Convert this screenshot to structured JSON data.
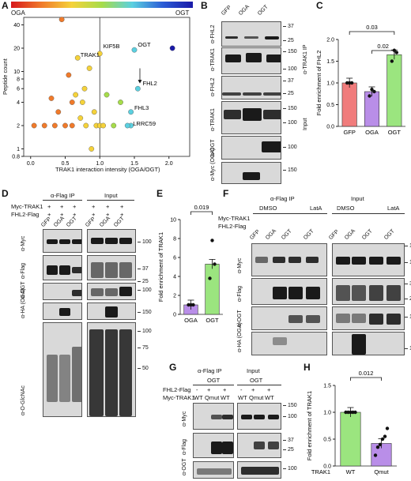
{
  "panels": {
    "A": "A",
    "B": "B",
    "C": "C",
    "D": "D",
    "E": "E",
    "F": "F",
    "G": "G",
    "H": "H"
  },
  "colorbar": {
    "left": "OGA",
    "right": "OGT"
  },
  "scatter": {
    "xlabel": "TRAK1 interaction intensity (OGA/OGT)",
    "ylabel": "Peptide count",
    "xticks": [
      "0.0",
      "0.5",
      "1.0",
      "1.5",
      "2.0"
    ],
    "yticks": [
      "0.8",
      "1",
      "2",
      "4",
      "6",
      "8",
      "10",
      "20",
      "40"
    ],
    "labels": [
      "KIF5B",
      "OGT",
      "TRAK1",
      "FHL2",
      "FHL3",
      "LRRC59"
    ]
  },
  "panelB": {
    "lanes": [
      "GFP",
      "OGA",
      "OGT"
    ],
    "rows": [
      "α-FHL2",
      "α-TRAK1",
      "α-FHL2",
      "α-TRAK1",
      "α-OGT",
      "α-Myc (OGA)"
    ],
    "groups": [
      "α-TRAK1 IP",
      "Input"
    ],
    "mw": [
      "37",
      "25",
      "150",
      "100",
      "37",
      "25",
      "150",
      "100",
      "100",
      "150"
    ]
  },
  "chart_data": [
    {
      "type": "scatter",
      "xlabel": "TRAK1 interaction intensity (OGA/OGT)",
      "ylabel": "Peptide count",
      "yscale": "log",
      "xlim": [
        -0.1,
        2.3
      ],
      "ylim": [
        0.8,
        50
      ],
      "points": [
        {
          "x": 0.05,
          "y": 2
        },
        {
          "x": 0.2,
          "y": 2
        },
        {
          "x": 0.3,
          "y": 4.5
        },
        {
          "x": 0.35,
          "y": 2
        },
        {
          "x": 0.4,
          "y": 3
        },
        {
          "x": 0.45,
          "y": 47
        },
        {
          "x": 0.5,
          "y": 2
        },
        {
          "x": 0.55,
          "y": 9
        },
        {
          "x": 0.6,
          "y": 4
        },
        {
          "x": 0.6,
          "y": 2
        },
        {
          "x": 0.65,
          "y": 5
        },
        {
          "x": 0.68,
          "y": 15
        },
        {
          "x": 0.72,
          "y": 2.5
        },
        {
          "x": 0.75,
          "y": 4
        },
        {
          "x": 0.78,
          "y": 6
        },
        {
          "x": 0.8,
          "y": 2
        },
        {
          "x": 0.85,
          "y": 11
        },
        {
          "x": 0.88,
          "y": 1
        },
        {
          "x": 0.92,
          "y": 3
        },
        {
          "x": 0.95,
          "y": 2
        },
        {
          "x": 1.0,
          "y": 17
        },
        {
          "x": 1.0,
          "y": 2
        },
        {
          "x": 1.05,
          "y": 2
        },
        {
          "x": 1.1,
          "y": 5
        },
        {
          "x": 1.2,
          "y": 2
        },
        {
          "x": 1.3,
          "y": 4
        },
        {
          "x": 1.45,
          "y": 3
        },
        {
          "x": 1.45,
          "y": 2
        },
        {
          "x": 1.5,
          "y": 19
        },
        {
          "x": 1.55,
          "y": 6
        },
        {
          "x": 2.05,
          "y": 20
        },
        {
          "x": 1.4,
          "y": 2
        }
      ],
      "labels": [
        "KIF5B",
        "OGT",
        "TRAK1",
        "FHL2",
        "FHL3",
        "LRRC59"
      ]
    },
    {
      "type": "bar",
      "categories": [
        "GFP",
        "OGA",
        "OGT"
      ],
      "values": [
        1.0,
        0.8,
        1.65
      ],
      "points": [
        [
          1,
          1,
          1
        ],
        [
          0.7,
          0.85,
          0.8
        ],
        [
          1.5,
          1.75,
          1.7
        ]
      ],
      "colors": [
        "#f07c7c",
        "#b98ee8",
        "#9be57f"
      ],
      "ylabel": "Fold enrichment of FHL2",
      "ylim": [
        0,
        2.0
      ],
      "yticks": [
        "0.0",
        "0.5",
        "1.0",
        "1.5",
        "2.0"
      ],
      "pvalues": [
        "0.03",
        "0.02"
      ]
    },
    {
      "type": "bar",
      "categories": [
        "OGA",
        "OGT"
      ],
      "values": [
        1.0,
        5.3
      ],
      "points": [
        [
          1,
          1,
          1
        ],
        [
          3.8,
          7.8,
          5.3
        ]
      ],
      "colors": [
        "#b98ee8",
        "#9be57f"
      ],
      "ylabel": "Fold enrichment of TRAK1",
      "ylim": [
        0,
        10
      ],
      "yticks": [
        "0",
        "2",
        "4",
        "6",
        "8",
        "10"
      ],
      "pvalues": [
        "0.019"
      ]
    },
    {
      "type": "bar",
      "categories": [
        "WT",
        "Qmut"
      ],
      "values": [
        1.0,
        0.42
      ],
      "points": [
        [
          1,
          1,
          1,
          1,
          1
        ],
        [
          0.2,
          0.35,
          0.4,
          0.5,
          0.55,
          0.7
        ]
      ],
      "colors": [
        "#9be57f",
        "#b98ee8"
      ],
      "ylabel": "Fold enrichment of TRAK1",
      "xprefix": "TRAK1",
      "ylim": [
        0,
        1.5
      ],
      "yticks": [
        "0.0",
        "0.5",
        "1.0",
        "1.5"
      ],
      "pvalues": [
        "0.012"
      ]
    }
  ],
  "panelD": {
    "rowsTop": [
      "Myc-TRAK1",
      "FHL2-Flag"
    ],
    "plus": [
      "+",
      "+",
      "+",
      "+",
      "+",
      "+",
      "+",
      "+",
      "+",
      "+",
      "+",
      "+"
    ],
    "groups": [
      "α-Flag IP",
      "Input"
    ],
    "lanes": [
      "GFP",
      "OGA",
      "OGT",
      "GFP",
      "OGA",
      "OGT"
    ],
    "rows": [
      "α-Myc",
      "α-Flag",
      "α-OGT",
      "α-HA (OGA)",
      "α-O-GlcNAc"
    ],
    "mw": [
      "100",
      "37",
      "25",
      "100",
      "150",
      "100",
      "75",
      "50"
    ]
  },
  "panelF": {
    "groups": [
      "α-Flag IP",
      "Input"
    ],
    "treat": [
      "DMSO",
      "LatA",
      "DMSO",
      "LatA"
    ],
    "rowsTop": [
      "Myc-TRAK1",
      "FHL2-Flag"
    ],
    "marks": [
      "-",
      "+",
      "+",
      "+",
      "+",
      "-",
      "+",
      "+",
      "+",
      "+"
    ],
    "lanes": [
      "GFP",
      "OGA",
      "OGT",
      "OGT",
      "GFP",
      "OGA",
      "OGT",
      "OGT"
    ],
    "rows": [
      "α-Myc",
      "α-Flag",
      "α-OGT",
      "α-HA (OGA)"
    ],
    "mw": [
      "150",
      "100",
      "37",
      "25",
      "100",
      "100"
    ]
  },
  "panelG": {
    "groups": [
      "α-Flag IP",
      "Input"
    ],
    "sub": [
      "OGT",
      "OGT"
    ],
    "rowsTop": [
      "FHL2-Flag",
      "Myc-TRAK1"
    ],
    "flag": [
      "-",
      "+",
      "+",
      "-",
      "+",
      "+"
    ],
    "myc": [
      "WT",
      "Qmut",
      "WT",
      "WT",
      "Qmut",
      "WT"
    ],
    "rows": [
      "α-Myc",
      "α-Flag",
      "α-OGT"
    ],
    "mw": [
      "150",
      "100",
      "37",
      "25",
      "100"
    ]
  }
}
